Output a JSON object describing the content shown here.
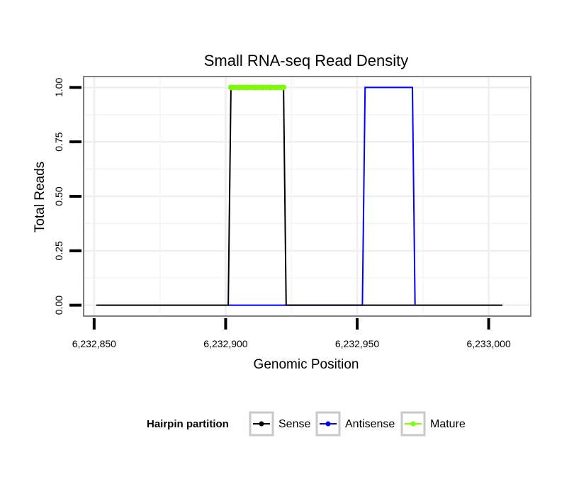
{
  "chart_data": {
    "type": "line",
    "title": "Small RNA-seq Read Density",
    "xlabel": "Genomic Position",
    "ylabel": "Total Reads",
    "xlim": [
      6232846,
      6233016
    ],
    "ylim": [
      -0.05,
      1.05
    ],
    "x_ticks": [
      6232850,
      6232900,
      6232950,
      6233000
    ],
    "x_tick_labels": [
      "6,232,850",
      "6,232,900",
      "6,232,950",
      "6,233,000"
    ],
    "y_ticks": [
      0,
      0.25,
      0.5,
      0.75,
      1
    ],
    "y_tick_labels": [
      "0.00",
      "0.25",
      "0.50",
      "0.75",
      "1.00"
    ],
    "grid": true,
    "legend_position": "bottom",
    "legend_title": "Hairpin partition",
    "series": [
      {
        "name": "Sense",
        "color": "#000000",
        "x": [
          6232851,
          6232901,
          6232902,
          6232922,
          6232923,
          6233005
        ],
        "y": [
          0,
          0,
          1,
          1,
          0,
          0
        ]
      },
      {
        "name": "Antisense",
        "color": "#0000ff",
        "x": [
          6232901,
          6232923,
          6232952,
          6232953,
          6232971,
          6232972
        ],
        "y": [
          0,
          0,
          0,
          1,
          1,
          0
        ]
      },
      {
        "name": "Mature",
        "color": "#7cfc00",
        "x": [
          6232902,
          6232905,
          6232908,
          6232911,
          6232914,
          6232917,
          6232920,
          6232922
        ],
        "y": [
          1,
          1,
          1,
          1,
          1,
          1,
          1,
          1
        ]
      }
    ]
  }
}
